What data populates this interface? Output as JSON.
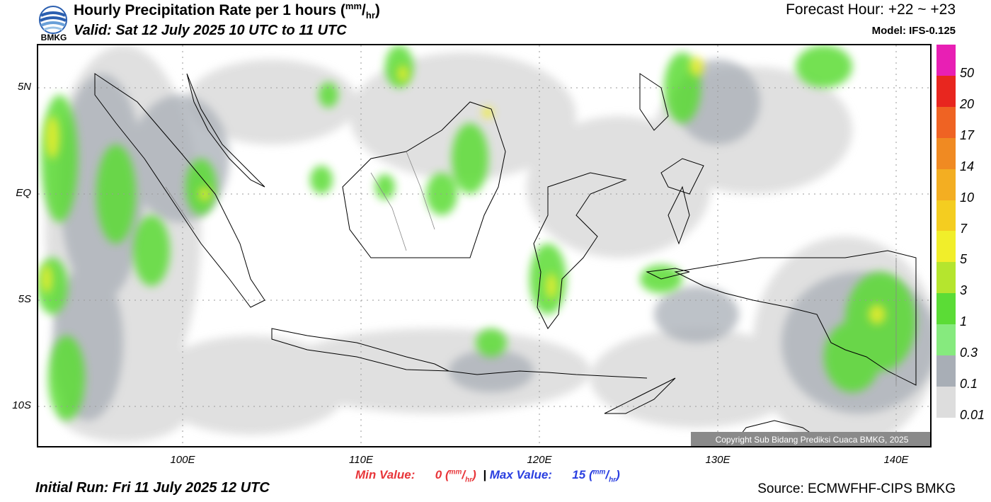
{
  "header": {
    "title": "Hourly Precipitation Rate per 1 hours",
    "title_unit_num": "mm",
    "title_unit_den": "hr",
    "valid": "Valid: Sat 12 July 2025 10 UTC to 11 UTC",
    "forecast_hour": "Forecast Hour: +22 ~ +23",
    "model": "Model: IFS-0.125",
    "logo_text": "BMKG"
  },
  "axes": {
    "lat_labels": [
      "5N",
      "EQ",
      "5S",
      "10S"
    ],
    "lon_labels": [
      "100E",
      "110E",
      "120E",
      "130E",
      "140E"
    ]
  },
  "colorbar": {
    "labels": [
      "50",
      "20",
      "17",
      "14",
      "10",
      "7",
      "5",
      "3",
      "1",
      "0.3",
      "0.1",
      "0.01"
    ],
    "colors": [
      "#e81fb4",
      "#e8261f",
      "#ef6323",
      "#f08a22",
      "#f3ae22",
      "#f4cd20",
      "#f1ee2a",
      "#b5e52e",
      "#5bdc36",
      "#86ea7e",
      "#a8aeb6",
      "#dddddd"
    ]
  },
  "stats": {
    "min_label": "Min Value:",
    "min_value": "0",
    "sep": "|",
    "max_label": "Max Value:",
    "max_value": "15",
    "unit_num": "mm",
    "unit_den": "hr"
  },
  "footer": {
    "initial_run": "Initial Run: Fri 11 July 2025 12 UTC",
    "source": "Source: ECMWFHF-CIPS BMKG",
    "copyright": "Copyright Sub Bidang Prediksi Cuaca BMKG, 2025"
  }
}
